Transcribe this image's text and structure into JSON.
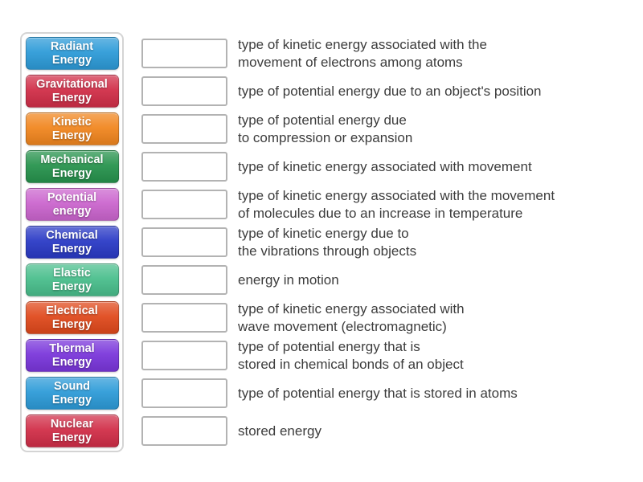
{
  "activity": {
    "type_label": "match-up",
    "tile_text_color": "#ffffff",
    "panel_border_color": "#d4d4d4",
    "slot_border_color": "#b3b3b3",
    "definition_text_color": "#3c3c3c"
  },
  "tiles": [
    {
      "label": "Radiant\nEnergy",
      "color": "#2d9bd8"
    },
    {
      "label": "Gravitational\nEnergy",
      "color": "#d12e48"
    },
    {
      "label": "Kinetic\nEnergy",
      "color": "#f1861f"
    },
    {
      "label": "Mechanical\nEnergy",
      "color": "#27934d"
    },
    {
      "label": "Potential\nenergy",
      "color": "#cb65ce"
    },
    {
      "label": "Chemical\nEnergy",
      "color": "#2a3ac6"
    },
    {
      "label": "Elastic\nEnergy",
      "color": "#49be8c"
    },
    {
      "label": "Electrical\nEnergy",
      "color": "#e0491c"
    },
    {
      "label": "Thermal\nEnergy",
      "color": "#7a36db"
    },
    {
      "label": "Sound\nEnergy",
      "color": "#2d9bd8"
    },
    {
      "label": "Nuclear\nEnergy",
      "color": "#d12e48"
    }
  ],
  "rows": [
    {
      "definition": "type of kinetic energy associated with the\nmovement of electrons among atoms"
    },
    {
      "definition": "type of potential energy due to an object's position"
    },
    {
      "definition": "type of potential energy due\nto compression or expansion"
    },
    {
      "definition": "type of kinetic energy associated with movement"
    },
    {
      "definition": "type of kinetic energy associated with the movement\nof molecules due to an increase in temperature"
    },
    {
      "definition": "type of kinetic energy due to\nthe vibrations through objects"
    },
    {
      "definition": "energy in motion"
    },
    {
      "definition": "type of kinetic energy associated with\nwave movement (electromagnetic)"
    },
    {
      "definition": "type of potential energy that is\nstored in chemical bonds of an object"
    },
    {
      "definition": "type of potential energy that is stored in atoms"
    },
    {
      "definition": "stored energy"
    }
  ]
}
